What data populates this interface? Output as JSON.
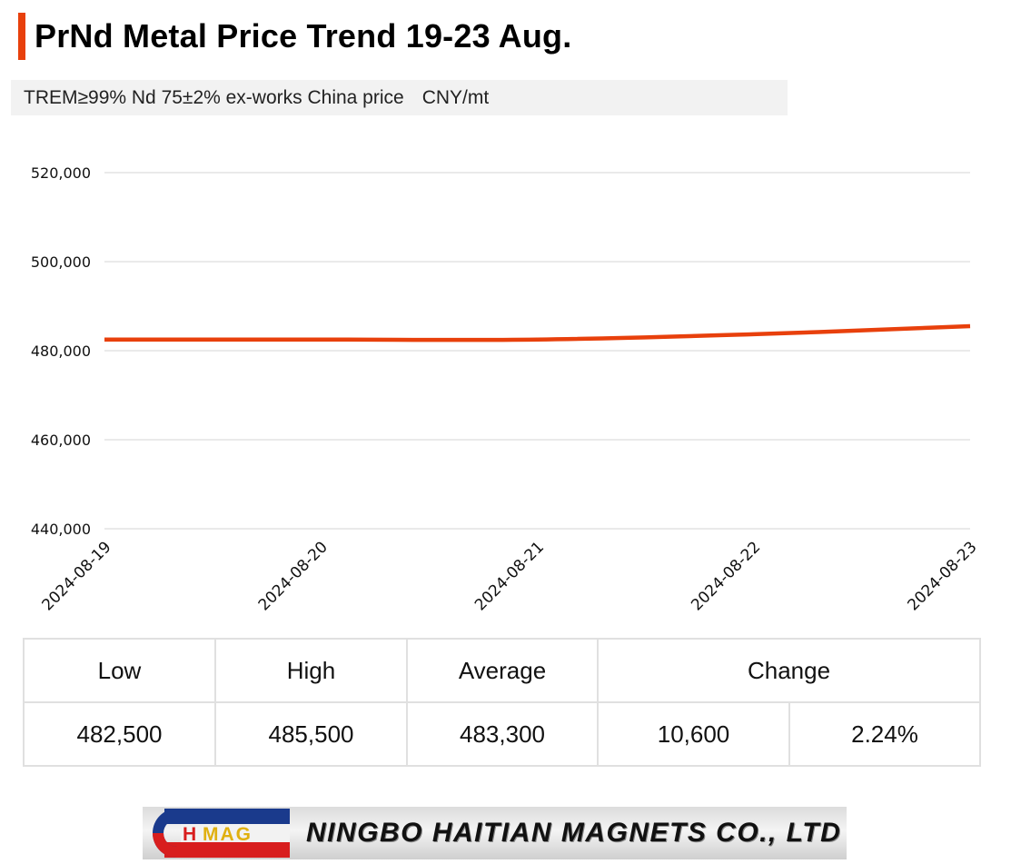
{
  "title": "PrNd Metal Price Trend 19-23 Aug.",
  "subtitle": {
    "spec": "TREM≥99% Nd 75±2% ex-works China price",
    "unit": "CNY/mt"
  },
  "colors": {
    "accent": "#e8400c",
    "line": "#e8400c",
    "grid": "#d4d4d4"
  },
  "chart_data": {
    "type": "line",
    "x": [
      "2024-08-19",
      "2024-08-20",
      "2024-08-21",
      "2024-08-22",
      "2024-08-23"
    ],
    "series": [
      {
        "values": [
          482500,
          482500,
          482500,
          483700,
          485500
        ]
      }
    ],
    "ylim": [
      440000,
      520000
    ],
    "yticks": [
      440000,
      460000,
      480000,
      500000,
      520000
    ],
    "ytick_labels": [
      "440,000",
      "460,000",
      "480,000",
      "500,000",
      "520,000"
    ],
    "grid": "horizontal",
    "smooth": true,
    "xlabel": "",
    "ylabel": ""
  },
  "stats": {
    "headers": [
      "Low",
      "High",
      "Average",
      "Change"
    ],
    "values": [
      "482,500",
      "485,500",
      "483,300",
      "10,600",
      "2.24%"
    ]
  },
  "banner": {
    "logo_text": {
      "h": "H",
      "mag": "MAG"
    },
    "company": "NINGBO HAITIAN MAGNETS CO., LTD",
    "logo_icon": "c-magnet-logo-icon"
  }
}
